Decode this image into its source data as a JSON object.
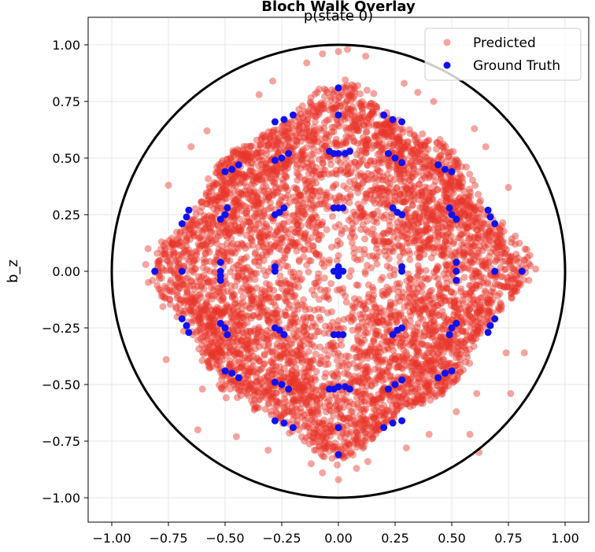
{
  "chart_data": {
    "type": "scatter",
    "title": "Bloch Walk Overlay",
    "subtitle": "p(state 0)",
    "xlabel": "",
    "ylabel": "b_z",
    "xlim": [
      -1.1,
      1.1
    ],
    "ylim": [
      -1.1,
      1.1
    ],
    "xticks": [
      "−1.00",
      "−0.75",
      "−0.50",
      "−0.25",
      "0.00",
      "0.25",
      "0.50",
      "0.75",
      "1.00"
    ],
    "yticks": [
      "1.00",
      "0.75",
      "0.50",
      "0.25",
      "0.00",
      "−0.25",
      "−0.50",
      "−0.75",
      "−1.00"
    ],
    "grid": true,
    "legend": "top-right",
    "circle": {
      "center": [
        0,
        0
      ],
      "radius": 1.0,
      "color": "#000000"
    },
    "series": [
      {
        "name": "Predicted",
        "color": "#e8352a",
        "alpha": 0.45,
        "description_extent": {
          "x": [
            -0.87,
            0.87
          ],
          "y": [
            -0.92,
            0.98
          ]
        },
        "sample_points": [
          [
            0.0,
            0.97
          ],
          [
            0.04,
            0.98
          ],
          [
            -0.07,
            0.96
          ],
          [
            0.12,
            0.95
          ],
          [
            -0.14,
            0.92
          ],
          [
            0.0,
            -0.92
          ],
          [
            -0.07,
            -0.89
          ],
          [
            0.08,
            -0.87
          ],
          [
            -0.12,
            -0.85
          ],
          [
            0.13,
            -0.84
          ],
          [
            0.87,
            0.01
          ],
          [
            0.82,
            0.05
          ],
          [
            0.84,
            -0.04
          ],
          [
            0.78,
            0.12
          ],
          [
            0.78,
            -0.09
          ],
          [
            -0.85,
            0.03
          ],
          [
            -0.82,
            -0.04
          ],
          [
            -0.84,
            0.1
          ],
          [
            -0.78,
            0.13
          ],
          [
            -0.78,
            -0.11
          ],
          [
            0.29,
            0.83
          ],
          [
            0.35,
            0.79
          ],
          [
            -0.29,
            0.84
          ],
          [
            -0.35,
            0.78
          ],
          [
            0.42,
            0.75
          ],
          [
            0.3,
            -0.78
          ],
          [
            -0.31,
            -0.79
          ],
          [
            0.4,
            -0.72
          ],
          [
            -0.45,
            -0.73
          ],
          [
            0.52,
            -0.62
          ],
          [
            0.65,
            0.55
          ],
          [
            -0.65,
            0.55
          ],
          [
            0.61,
            -0.54
          ],
          [
            -0.6,
            -0.52
          ],
          [
            0.75,
            0.37
          ],
          [
            -0.75,
            0.38
          ],
          [
            0.74,
            -0.36
          ],
          [
            -0.76,
            -0.39
          ],
          [
            0.6,
            0.63
          ],
          [
            -0.58,
            0.62
          ],
          [
            0.76,
            -0.54
          ],
          [
            -0.62,
            -0.7
          ],
          [
            0.62,
            -0.8
          ],
          [
            0.58,
            -0.72
          ],
          [
            0.82,
            -0.36
          ]
        ]
      },
      {
        "name": "Ground Truth",
        "color": "#1111ee",
        "points": [
          [
            0.0,
            0.81
          ],
          [
            0.0,
            0.69
          ],
          [
            0.0,
            0.0
          ],
          [
            0.0,
            -0.28
          ],
          [
            0.0,
            -0.51
          ],
          [
            0.0,
            -0.69
          ],
          [
            0.0,
            -0.81
          ],
          [
            0.0,
            0.28
          ],
          [
            0.0,
            0.52
          ],
          [
            0.81,
            0.0
          ],
          [
            0.69,
            0.0
          ],
          [
            -0.81,
            0.0
          ],
          [
            -0.69,
            0.0
          ],
          [
            0.52,
            0.0
          ],
          [
            0.52,
            0.04
          ],
          [
            0.52,
            -0.04
          ],
          [
            -0.52,
            0.0
          ],
          [
            -0.52,
            0.04
          ],
          [
            -0.52,
            -0.04
          ],
          [
            0.28,
            0.0
          ],
          [
            -0.28,
            0.0
          ],
          [
            0.28,
            0.02
          ],
          [
            -0.28,
            0.02
          ],
          [
            -0.02,
            0.52
          ],
          [
            0.03,
            0.52
          ],
          [
            0.05,
            0.53
          ],
          [
            -0.04,
            0.53
          ],
          [
            0.02,
            0.28
          ],
          [
            -0.02,
            0.28
          ],
          [
            0.02,
            -0.28
          ],
          [
            -0.02,
            -0.28
          ],
          [
            -0.02,
            -0.52
          ],
          [
            0.03,
            -0.51
          ],
          [
            0.05,
            -0.52
          ],
          [
            -0.04,
            -0.52
          ],
          [
            0.22,
            0.52
          ],
          [
            0.25,
            0.5
          ],
          [
            0.28,
            0.48
          ],
          [
            -0.22,
            0.52
          ],
          [
            -0.25,
            0.5
          ],
          [
            -0.28,
            0.49
          ],
          [
            0.22,
            -0.52
          ],
          [
            0.25,
            -0.5
          ],
          [
            0.28,
            -0.48
          ],
          [
            -0.22,
            -0.52
          ],
          [
            -0.25,
            -0.5
          ],
          [
            -0.28,
            -0.49
          ],
          [
            0.24,
            0.28
          ],
          [
            0.26,
            0.26
          ],
          [
            0.28,
            0.25
          ],
          [
            -0.24,
            0.28
          ],
          [
            -0.26,
            0.26
          ],
          [
            -0.28,
            0.25
          ],
          [
            0.24,
            -0.28
          ],
          [
            0.26,
            -0.26
          ],
          [
            0.28,
            -0.25
          ],
          [
            -0.24,
            -0.28
          ],
          [
            -0.26,
            -0.26
          ],
          [
            -0.28,
            -0.25
          ],
          [
            0.49,
            0.28
          ],
          [
            0.5,
            0.25
          ],
          [
            0.52,
            0.23
          ],
          [
            -0.49,
            0.28
          ],
          [
            -0.5,
            0.25
          ],
          [
            -0.52,
            0.23
          ],
          [
            0.49,
            -0.28
          ],
          [
            0.5,
            -0.25
          ],
          [
            0.52,
            -0.23
          ],
          [
            -0.49,
            -0.28
          ],
          [
            -0.5,
            -0.25
          ],
          [
            -0.52,
            -0.23
          ],
          [
            0.44,
            0.47
          ],
          [
            0.47,
            0.45
          ],
          [
            0.5,
            0.44
          ],
          [
            -0.44,
            0.47
          ],
          [
            -0.47,
            0.45
          ],
          [
            -0.5,
            0.44
          ],
          [
            0.44,
            -0.47
          ],
          [
            0.47,
            -0.45
          ],
          [
            0.5,
            -0.44
          ],
          [
            -0.44,
            -0.47
          ],
          [
            -0.47,
            -0.45
          ],
          [
            -0.5,
            -0.44
          ],
          [
            0.2,
            0.69
          ],
          [
            0.24,
            0.67
          ],
          [
            0.28,
            0.66
          ],
          [
            -0.2,
            0.69
          ],
          [
            -0.24,
            0.67
          ],
          [
            -0.28,
            0.66
          ],
          [
            0.2,
            -0.69
          ],
          [
            0.24,
            -0.67
          ],
          [
            0.28,
            -0.66
          ],
          [
            -0.2,
            -0.69
          ],
          [
            -0.24,
            -0.67
          ],
          [
            -0.28,
            -0.66
          ],
          [
            0.66,
            0.27
          ],
          [
            0.67,
            0.24
          ],
          [
            0.69,
            0.21
          ],
          [
            -0.66,
            0.27
          ],
          [
            -0.67,
            0.24
          ],
          [
            -0.69,
            0.21
          ],
          [
            0.66,
            -0.27
          ],
          [
            0.67,
            -0.24
          ],
          [
            0.69,
            -0.21
          ],
          [
            -0.66,
            -0.27
          ],
          [
            -0.67,
            -0.24
          ],
          [
            -0.69,
            -0.21
          ],
          [
            0.52,
            0.04
          ],
          [
            -0.52,
            -0.02
          ],
          [
            0.02,
            0.0
          ],
          [
            -0.02,
            0.0
          ],
          [
            0.0,
            0.02
          ],
          [
            0.0,
            -0.02
          ]
        ]
      }
    ]
  }
}
